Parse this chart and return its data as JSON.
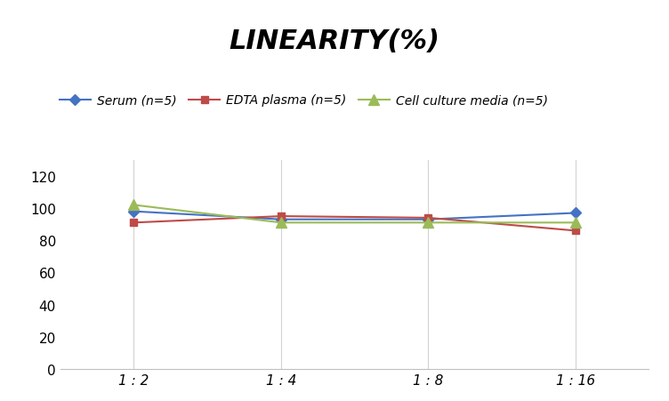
{
  "title": "LINEARITY(%)",
  "x_labels": [
    "1 : 2",
    "1 : 4",
    "1 : 8",
    "1 : 16"
  ],
  "x_positions": [
    0,
    1,
    2,
    3
  ],
  "series": [
    {
      "label": "Serum (n=5)",
      "values": [
        98,
        93,
        93,
        97
      ],
      "color": "#4472C4",
      "marker": "D",
      "marker_size": 6,
      "linewidth": 1.5
    },
    {
      "label": "EDTA plasma (n=5)",
      "values": [
        91,
        95,
        94,
        86
      ],
      "color": "#BE4B48",
      "marker": "s",
      "marker_size": 6,
      "linewidth": 1.5
    },
    {
      "label": "Cell culture media (n=5)",
      "values": [
        102,
        91,
        91,
        91
      ],
      "color": "#9BBB59",
      "marker": "^",
      "marker_size": 8,
      "linewidth": 1.5
    }
  ],
  "ylim": [
    0,
    130
  ],
  "yticks": [
    0,
    20,
    40,
    60,
    80,
    100,
    120
  ],
  "background_color": "#ffffff",
  "grid_color": "#d3d3d3",
  "title_fontsize": 22,
  "legend_fontsize": 10,
  "tick_fontsize": 11
}
